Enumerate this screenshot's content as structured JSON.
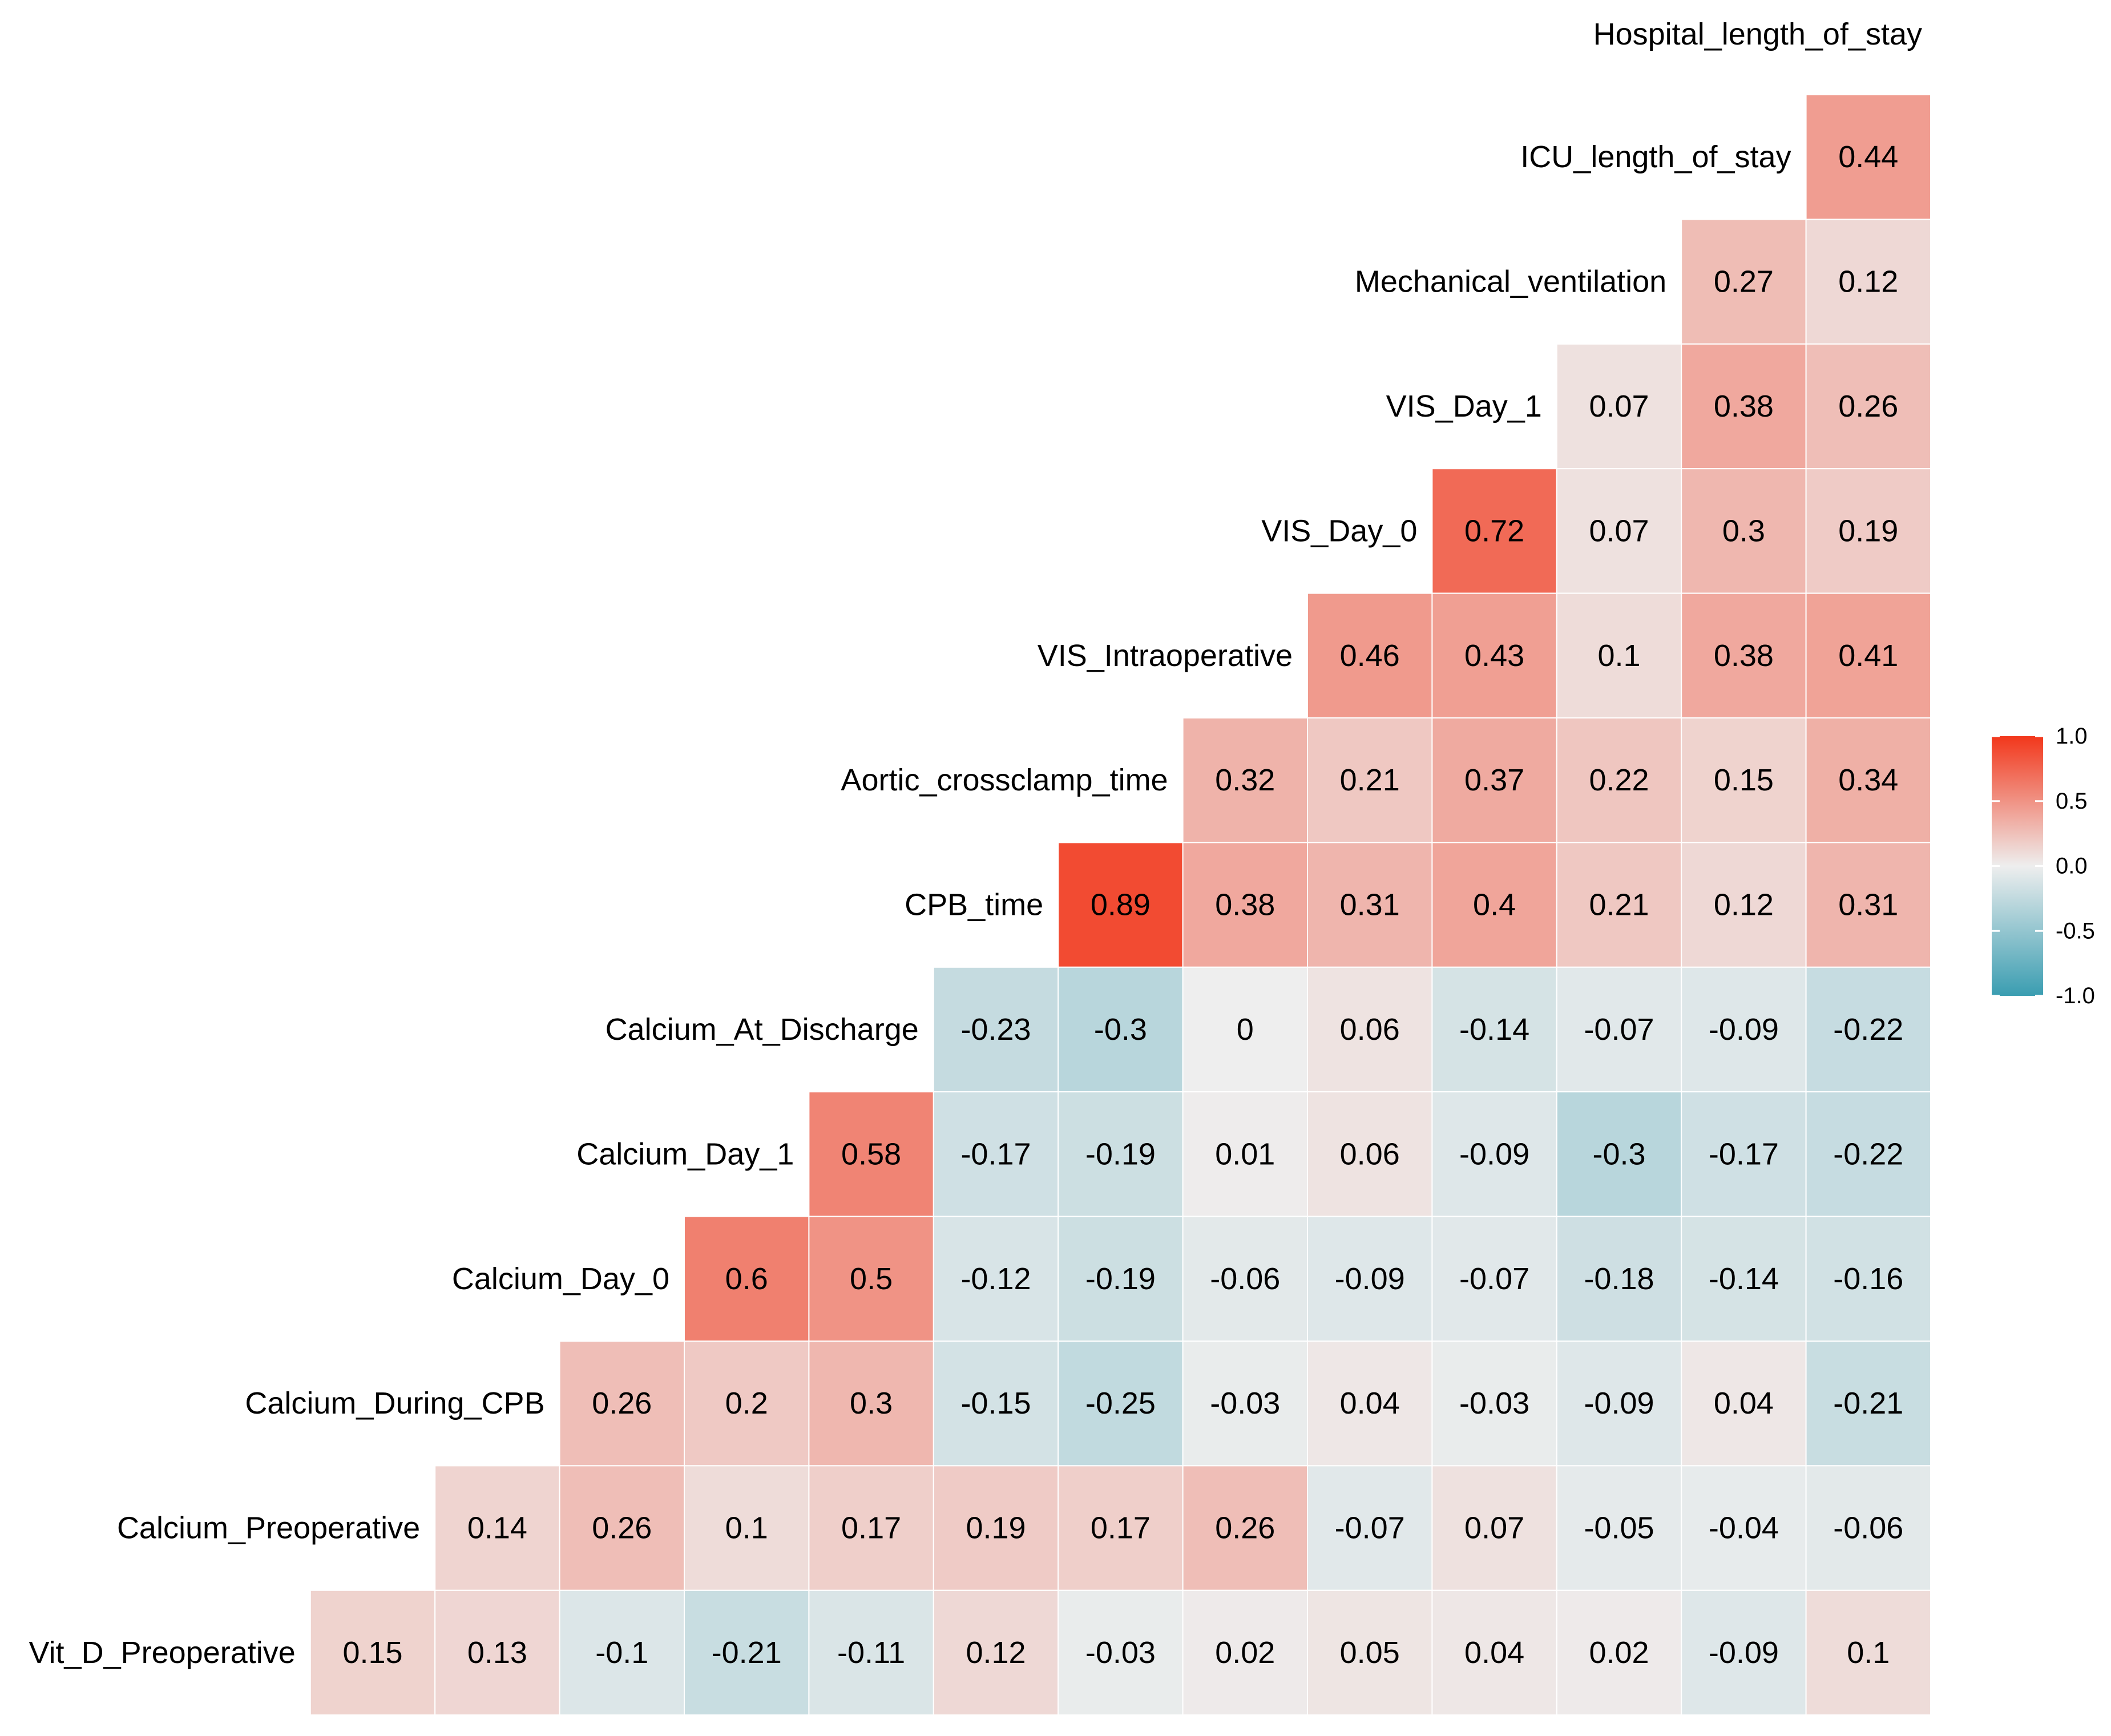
{
  "chart_data": {
    "type": "heatmap",
    "title": "",
    "variables": [
      "Vit_D_Preoperative",
      "Calcium_Preoperative",
      "Calcium_During_CPB",
      "Calcium_Day_0",
      "Calcium_Day_1",
      "Calcium_At_Discharge",
      "CPB_time",
      "Aortic_crossclamp_time",
      "VIS_Intraoperative",
      "VIS_Day_0",
      "VIS_Day_1",
      "Mechanical_ventilation",
      "ICU_length_of_stay",
      "Hospital_length_of_stay"
    ],
    "rows": [
      {
        "label": "Hospital_length_of_stay",
        "values": []
      },
      {
        "label": "ICU_length_of_stay",
        "values": [
          0.44
        ]
      },
      {
        "label": "Mechanical_ventilation",
        "values": [
          0.27,
          0.12
        ]
      },
      {
        "label": "VIS_Day_1",
        "values": [
          0.07,
          0.38,
          0.26
        ]
      },
      {
        "label": "VIS_Day_0",
        "values": [
          0.72,
          0.07,
          0.3,
          0.19
        ]
      },
      {
        "label": "VIS_Intraoperative",
        "values": [
          0.46,
          0.43,
          0.1,
          0.38,
          0.41
        ]
      },
      {
        "label": "Aortic_crossclamp_time",
        "values": [
          0.32,
          0.21,
          0.37,
          0.22,
          0.15,
          0.34
        ]
      },
      {
        "label": "CPB_time",
        "values": [
          0.89,
          0.38,
          0.31,
          0.4,
          0.21,
          0.12,
          0.31
        ]
      },
      {
        "label": "Calcium_At_Discharge",
        "values": [
          -0.23,
          -0.3,
          0,
          0.06,
          -0.14,
          -0.07,
          -0.09,
          -0.22
        ]
      },
      {
        "label": "Calcium_Day_1",
        "values": [
          0.58,
          -0.17,
          -0.19,
          0.01,
          0.06,
          -0.09,
          -0.3,
          -0.17,
          -0.22
        ]
      },
      {
        "label": "Calcium_Day_0",
        "values": [
          0.6,
          0.5,
          -0.12,
          -0.19,
          -0.06,
          -0.09,
          -0.07,
          -0.18,
          -0.14,
          -0.16
        ]
      },
      {
        "label": "Calcium_During_CPB",
        "values": [
          0.26,
          0.2,
          0.3,
          -0.15,
          -0.25,
          -0.03,
          0.04,
          -0.03,
          -0.09,
          0.04,
          -0.21
        ]
      },
      {
        "label": "Calcium_Preoperative",
        "values": [
          0.14,
          0.26,
          0.1,
          0.17,
          0.19,
          0.17,
          0.26,
          -0.07,
          0.07,
          -0.05,
          -0.04,
          -0.06
        ]
      },
      {
        "label": "Vit_D_Preoperative",
        "values": [
          0.15,
          0.13,
          -0.1,
          -0.21,
          -0.11,
          0.12,
          -0.03,
          0.02,
          0.05,
          0.04,
          0.02,
          -0.09,
          0.1
        ]
      }
    ],
    "value_range": [
      -1.0,
      1.0
    ],
    "colorscale": {
      "low": "#3a9db1",
      "mid": "#eeeeee",
      "high": "#f2371b"
    },
    "legend": {
      "position": "right",
      "ticks": [
        "1.0",
        "0.5",
        "0.0",
        "-0.5",
        "-1.0"
      ]
    }
  }
}
